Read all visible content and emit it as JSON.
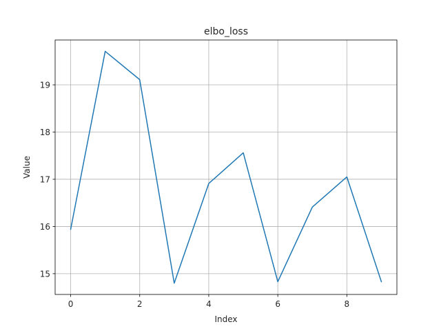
{
  "chart_data": {
    "type": "line",
    "title": "elbo_loss",
    "xlabel": "Index",
    "ylabel": "Value",
    "x": [
      0,
      1,
      2,
      3,
      4,
      5,
      6,
      7,
      8,
      9
    ],
    "series": [
      {
        "values": [
          15.94,
          19.71,
          19.11,
          14.8,
          16.91,
          17.56,
          14.83,
          16.41,
          17.05,
          14.83
        ],
        "color": "#1f77b4"
      }
    ],
    "xlim": [
      -0.45,
      9.45
    ],
    "ylim": [
      14.56,
      19.95
    ],
    "xticks": [
      0,
      2,
      4,
      6,
      8
    ],
    "yticks": [
      15,
      16,
      17,
      18,
      19
    ],
    "grid": true
  }
}
